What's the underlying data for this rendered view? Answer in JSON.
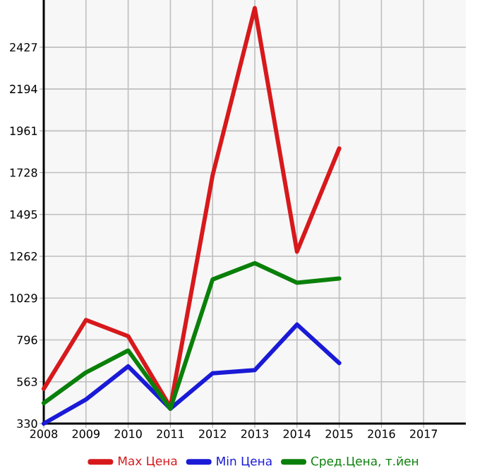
{
  "chart_data": {
    "type": "line",
    "x": [
      2008,
      2009,
      2010,
      2011,
      2012,
      2013,
      2014,
      2015
    ],
    "series": [
      {
        "name": "Max Цена",
        "color": "#d7191c",
        "values": [
          524,
          907,
          817,
          421,
          1713,
          2645,
          1288,
          1863
        ]
      },
      {
        "name": "Min Цена",
        "color": "#1a1ad7",
        "values": [
          330,
          464,
          649,
          413,
          610,
          628,
          882,
          667
        ]
      },
      {
        "name": "Сред.Цена, т.йен",
        "color": "#0a800a",
        "values": [
          444,
          615,
          737,
          413,
          1133,
          1224,
          1115,
          1138
        ]
      }
    ],
    "xlim": [
      2008,
      2018
    ],
    "ylim": [
      330,
      2690
    ],
    "xticks": [
      2008,
      2009,
      2010,
      2011,
      2012,
      2013,
      2014,
      2015,
      2016,
      2017
    ],
    "yticks": [
      330,
      563,
      796,
      1029,
      1262,
      1495,
      1728,
      1961,
      2194,
      2427
    ],
    "grid": true,
    "legend": "bottom",
    "marker": "none",
    "line_style": "solid"
  }
}
